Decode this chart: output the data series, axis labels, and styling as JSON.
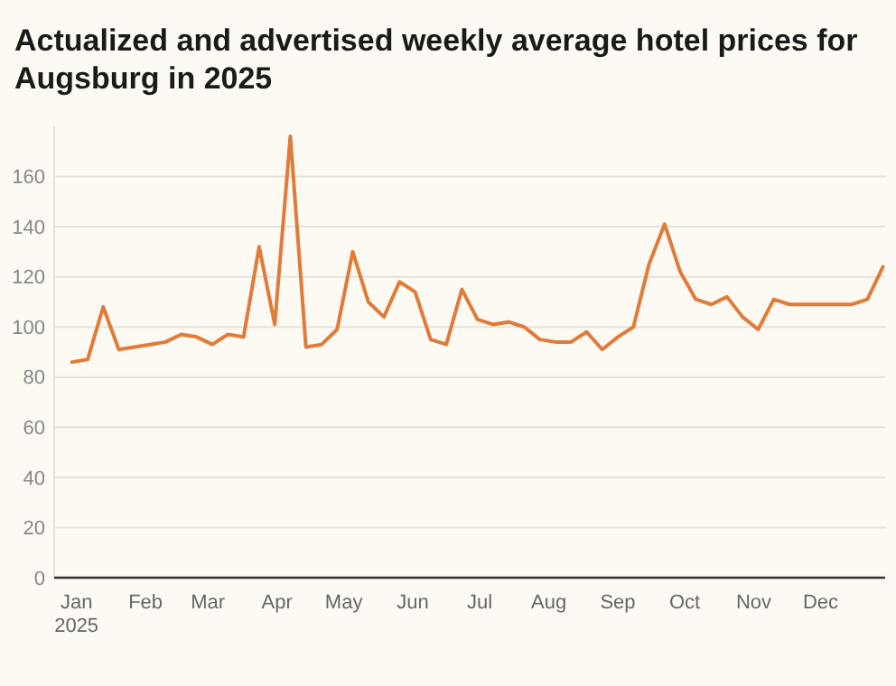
{
  "chart_data": {
    "type": "line",
    "title": "Actualized and advertised weekly average hotel prices for Augsburg in 2025",
    "x": [
      "2024-12-30",
      "2025-01-06",
      "2025-01-13",
      "2025-01-20",
      "2025-01-27",
      "2025-02-03",
      "2025-02-10",
      "2025-02-17",
      "2025-02-24",
      "2025-03-03",
      "2025-03-10",
      "2025-03-17",
      "2025-03-24",
      "2025-03-31",
      "2025-04-07",
      "2025-04-14",
      "2025-04-21",
      "2025-04-28",
      "2025-05-05",
      "2025-05-12",
      "2025-05-19",
      "2025-05-26",
      "2025-06-02",
      "2025-06-09",
      "2025-06-16",
      "2025-06-23",
      "2025-06-30",
      "2025-07-07",
      "2025-07-14",
      "2025-07-21",
      "2025-07-28",
      "2025-08-04",
      "2025-08-11",
      "2025-08-18",
      "2025-08-25",
      "2025-09-01",
      "2025-09-08",
      "2025-09-15",
      "2025-09-22",
      "2025-09-29",
      "2025-10-06",
      "2025-10-13",
      "2025-10-20",
      "2025-10-27",
      "2025-11-03",
      "2025-11-10",
      "2025-11-17",
      "2025-11-24",
      "2025-12-01",
      "2025-12-08",
      "2025-12-15",
      "2025-12-22",
      "2025-12-29"
    ],
    "series": [
      {
        "color": "#e07b39",
        "values": [
          86,
          87,
          108,
          91,
          92,
          93,
          94,
          97,
          96,
          93,
          97,
          96,
          132,
          101,
          176,
          92,
          93,
          99,
          130,
          110,
          104,
          118,
          114,
          95,
          93,
          115,
          103,
          101,
          102,
          100,
          95,
          94,
          94,
          98,
          91,
          96,
          100,
          125,
          141,
          122,
          111,
          109,
          112,
          104,
          99,
          111,
          109,
          109,
          109,
          109,
          109,
          111,
          124
        ]
      }
    ],
    "xlim": [
      "2024-12-22",
      "2025-12-30"
    ],
    "xticks": [
      {
        "value": "2025-01-01",
        "label": "Jan\n2025"
      },
      {
        "value": "2025-02-01",
        "label": "Feb"
      },
      {
        "value": "2025-03-01",
        "label": "Mar"
      },
      {
        "value": "2025-04-01",
        "label": "Apr"
      },
      {
        "value": "2025-05-01",
        "label": "May"
      },
      {
        "value": "2025-06-01",
        "label": "Jun"
      },
      {
        "value": "2025-07-01",
        "label": "Jul"
      },
      {
        "value": "2025-08-01",
        "label": "Aug"
      },
      {
        "value": "2025-09-01",
        "label": "Sep"
      },
      {
        "value": "2025-10-01",
        "label": "Oct"
      },
      {
        "value": "2025-11-01",
        "label": "Nov"
      },
      {
        "value": "2025-12-01",
        "label": "Dec"
      }
    ],
    "ylim": [
      0,
      180
    ],
    "yticks": [
      0,
      20,
      40,
      60,
      80,
      100,
      120,
      140,
      160
    ],
    "grid": "y",
    "marker": "none",
    "line_style": "solid"
  }
}
